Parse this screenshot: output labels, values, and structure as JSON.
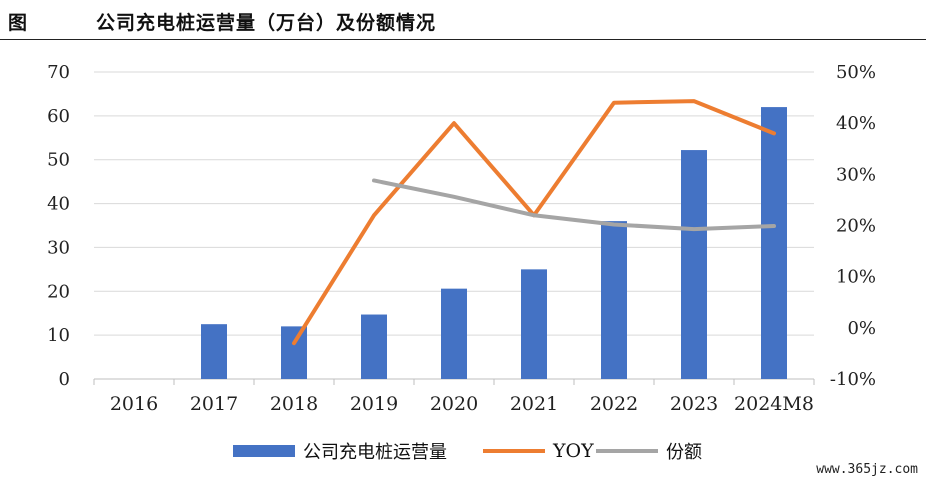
{
  "header": {
    "figure_label": "图",
    "title": "公司充电桩运营量（万台）及份额情况"
  },
  "chart_data": {
    "type": "bar",
    "categories": [
      "2016",
      "2017",
      "2018",
      "2019",
      "2020",
      "2021",
      "2022",
      "2023",
      "2024M8"
    ],
    "y_left": {
      "ticks": [
        "0",
        "10",
        "20",
        "30",
        "40",
        "50",
        "60",
        "70"
      ],
      "ylim": [
        0,
        70
      ]
    },
    "y_right": {
      "ticks": [
        "-10%",
        "0%",
        "10%",
        "20%",
        "30%",
        "40%",
        "50%"
      ],
      "ylim": [
        -10,
        50
      ]
    },
    "series": [
      {
        "name": "公司充电桩运营量",
        "kind": "bar",
        "axis": "left",
        "color": "#4472C4",
        "values": [
          0,
          12.5,
          12,
          14.7,
          20.6,
          25,
          36,
          52.2,
          62
        ]
      },
      {
        "name": "YOY",
        "kind": "line",
        "axis": "right",
        "color": "#ED7D31",
        "values": [
          null,
          null,
          -3,
          22,
          40,
          22,
          44,
          44.3,
          38
        ]
      },
      {
        "name": "份额",
        "kind": "line",
        "axis": "right",
        "color": "#A5A5A5",
        "values": [
          null,
          null,
          null,
          28.8,
          25.6,
          22,
          20.2,
          19.3,
          19.9
        ]
      }
    ],
    "grid": true,
    "legend_position": "bottom"
  },
  "watermark": "www.365jz.com"
}
